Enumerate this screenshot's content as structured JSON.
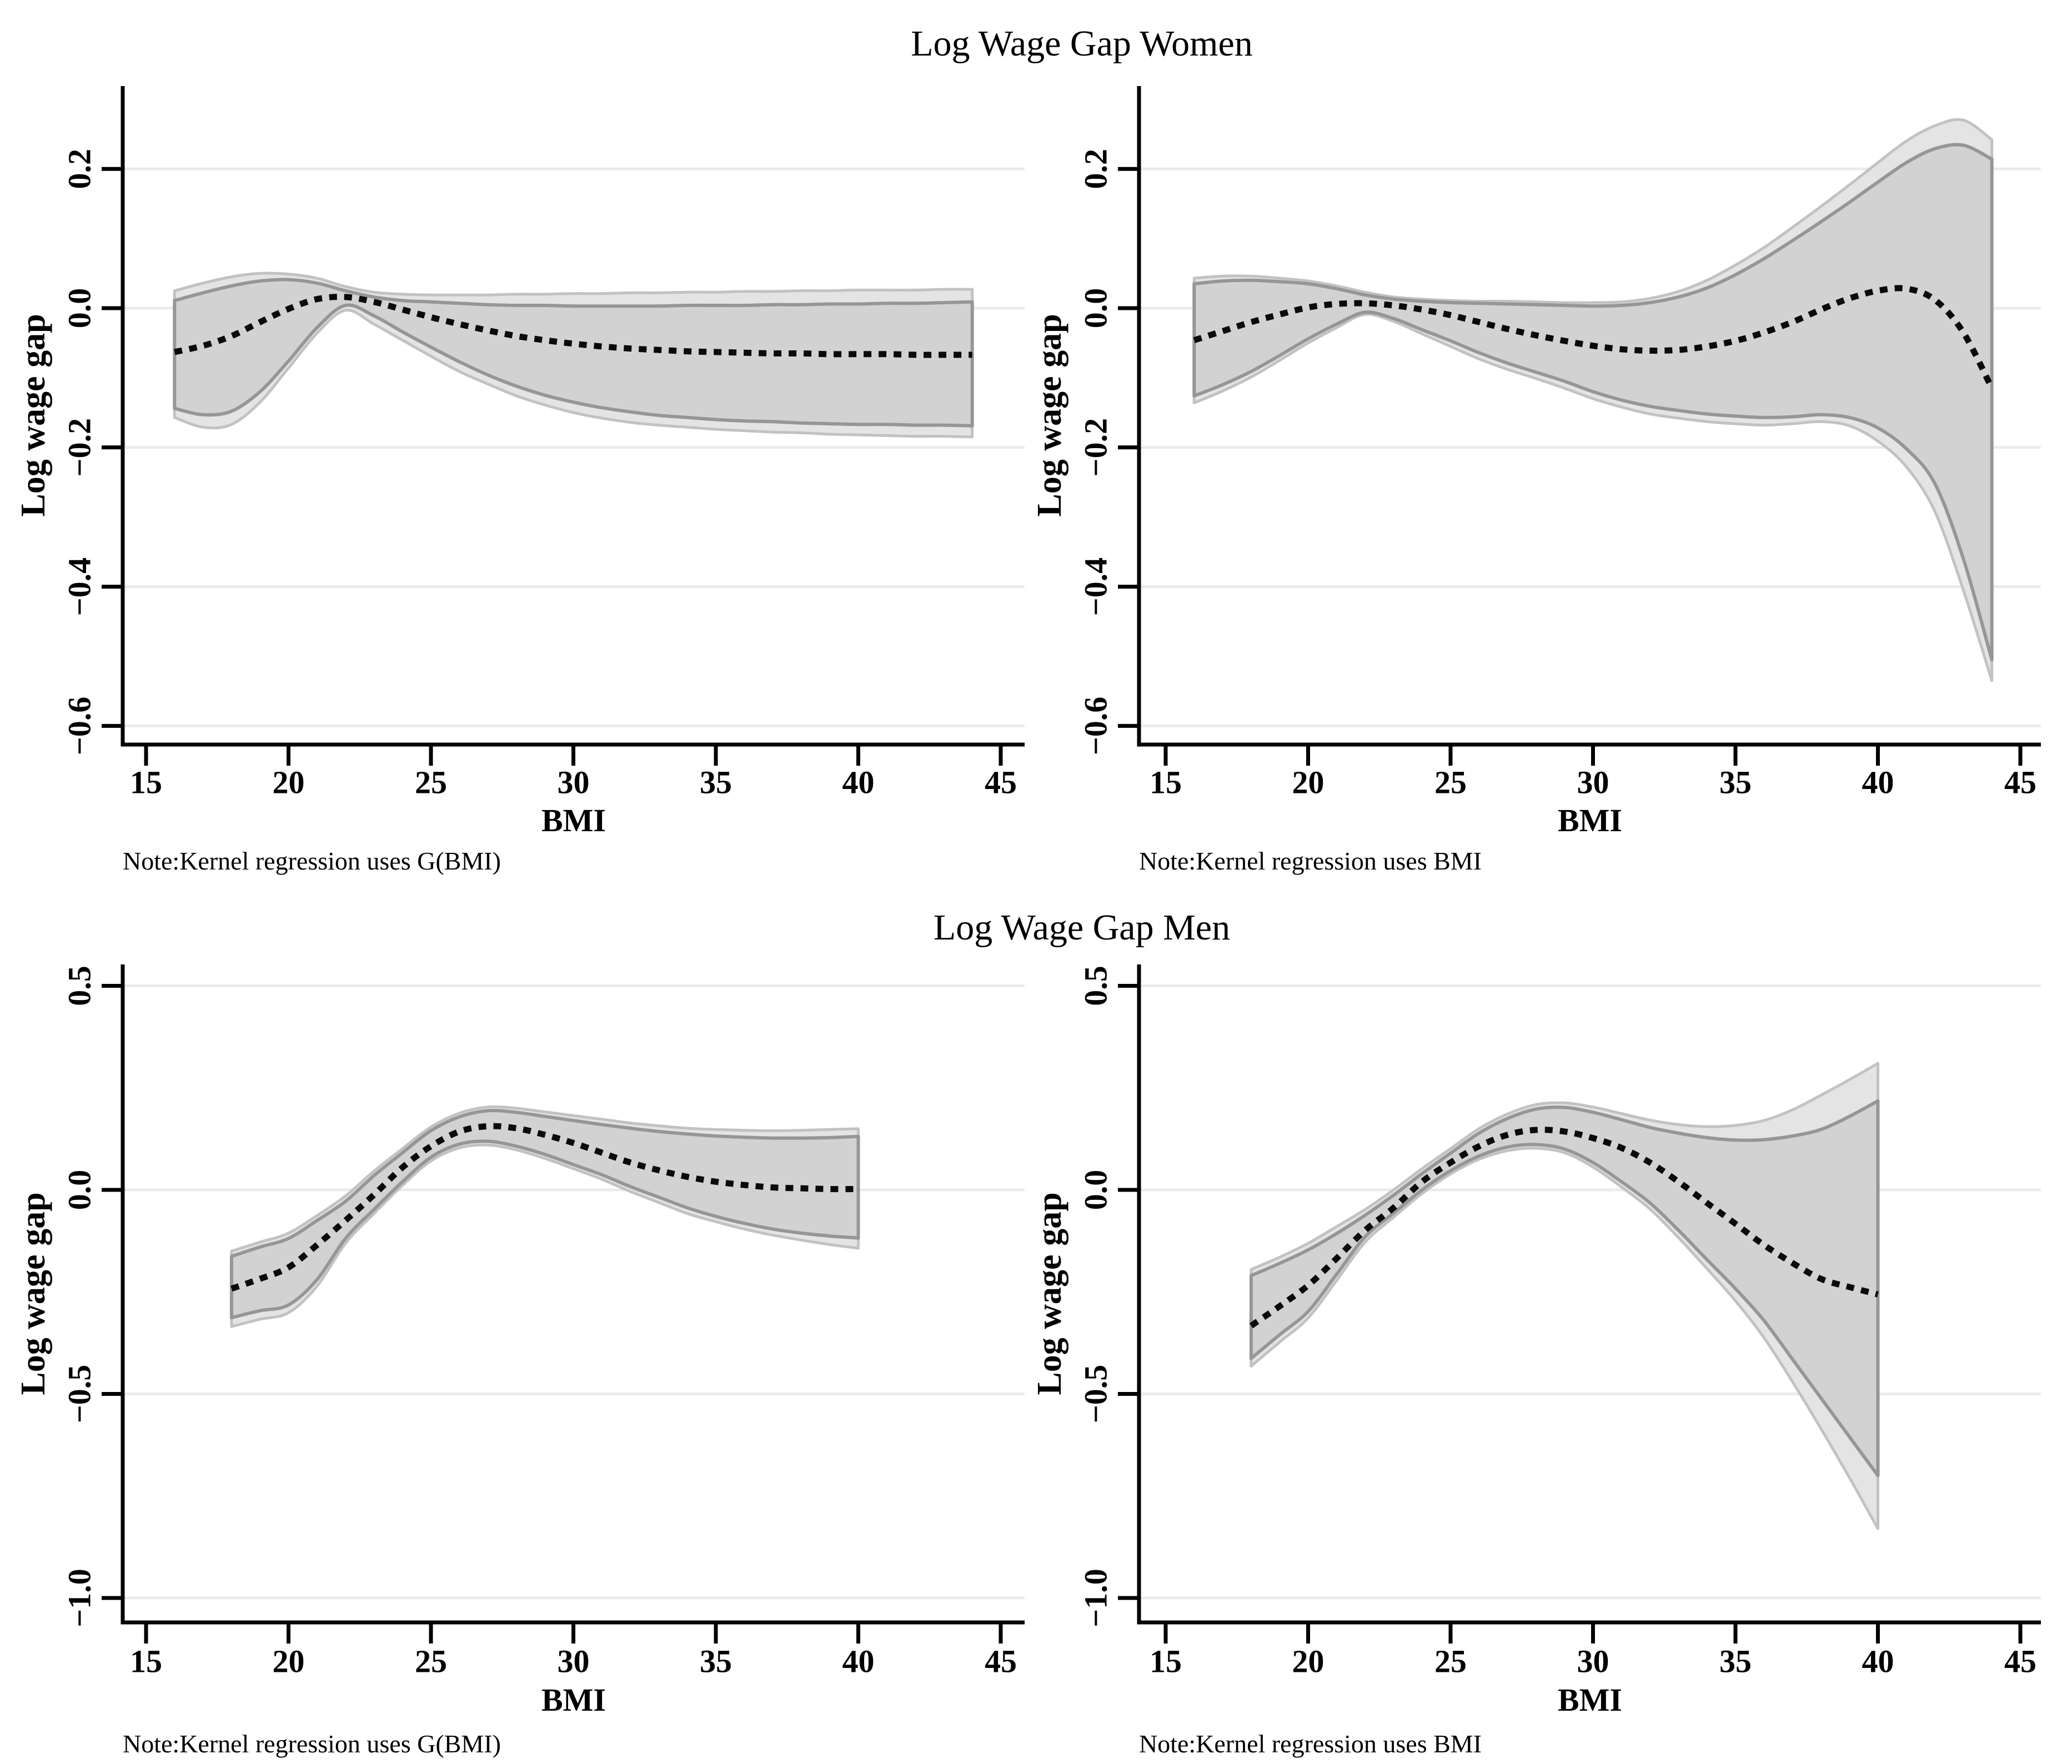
{
  "figure": {
    "titles": [
      "Log Wage Gap Women",
      "Log Wage Gap Men"
    ],
    "colors": {
      "background": "#ffffff",
      "axis": "#000000",
      "gridline": "#ebebeb",
      "band_inner_fill": "#d2d2d2",
      "band_inner_edge": "#969696",
      "band_outer_fill": "#e4e4e4",
      "band_outer_edge": "#c2c2c2",
      "estimate_line": "#0a0a0a"
    }
  },
  "chart_data": [
    {
      "type": "area",
      "id": "women-gbmi",
      "row": 0,
      "col": 0,
      "panel_title": "Log Wage Gap Women",
      "xlabel": "BMI",
      "ylabel": "Log wage gap",
      "note": "Note:Kernel regression uses G(BMI)",
      "grid": true,
      "legend": "none",
      "xlim": [
        14.2,
        45.8
      ],
      "ylim": [
        -0.63,
        0.32
      ],
      "xticks": [
        15,
        20,
        25,
        30,
        35,
        40,
        45
      ],
      "xtick_labels": [
        "15",
        "20",
        "25",
        "30",
        "35",
        "40",
        "45"
      ],
      "yticks": [
        0.2,
        0.0,
        -0.2,
        -0.4,
        -0.6
      ],
      "ytick_labels": [
        "0.2",
        "0.0",
        "−0.2",
        "−0.4",
        "−0.6"
      ],
      "x": [
        16,
        17,
        18,
        19,
        20,
        21,
        22,
        23,
        24,
        25,
        26,
        27,
        28,
        29,
        30,
        31,
        32,
        33,
        34,
        35,
        36,
        37,
        38,
        39,
        40,
        41,
        42,
        43,
        44
      ],
      "series": [
        {
          "name": "kernel estimate",
          "role": "estimate",
          "style": "dotted",
          "y": [
            -0.063,
            -0.054,
            -0.04,
            -0.02,
            -0.001,
            0.013,
            0.016,
            0.009,
            -0.002,
            -0.013,
            -0.023,
            -0.032,
            -0.04,
            -0.046,
            -0.051,
            -0.055,
            -0.058,
            -0.06,
            -0.062,
            -0.063,
            -0.064,
            -0.065,
            -0.065,
            -0.066,
            -0.066,
            -0.066,
            -0.067,
            -0.067,
            -0.067
          ]
        },
        {
          "name": "inner band",
          "role": "inner-band",
          "style": "area",
          "hi": [
            0.011,
            0.022,
            0.032,
            0.039,
            0.041,
            0.036,
            0.025,
            0.016,
            0.011,
            0.009,
            0.007,
            0.005,
            0.004,
            0.004,
            0.003,
            0.003,
            0.003,
            0.003,
            0.004,
            0.004,
            0.004,
            0.005,
            0.005,
            0.006,
            0.006,
            0.007,
            0.007,
            0.008,
            0.009
          ],
          "lo": [
            -0.144,
            -0.153,
            -0.148,
            -0.12,
            -0.076,
            -0.028,
            0.004,
            -0.011,
            -0.034,
            -0.056,
            -0.077,
            -0.096,
            -0.112,
            -0.125,
            -0.135,
            -0.143,
            -0.149,
            -0.154,
            -0.157,
            -0.16,
            -0.162,
            -0.163,
            -0.165,
            -0.166,
            -0.167,
            -0.167,
            -0.168,
            -0.168,
            -0.169
          ]
        },
        {
          "name": "outer band",
          "role": "outer-band",
          "style": "area",
          "hi": [
            0.025,
            0.036,
            0.045,
            0.05,
            0.049,
            0.043,
            0.031,
            0.023,
            0.02,
            0.019,
            0.019,
            0.019,
            0.02,
            0.02,
            0.021,
            0.021,
            0.022,
            0.022,
            0.023,
            0.023,
            0.024,
            0.024,
            0.025,
            0.025,
            0.026,
            0.026,
            0.026,
            0.027,
            0.027
          ],
          "lo": [
            -0.157,
            -0.171,
            -0.167,
            -0.135,
            -0.086,
            -0.036,
            -0.003,
            -0.023,
            -0.046,
            -0.069,
            -0.091,
            -0.109,
            -0.126,
            -0.139,
            -0.15,
            -0.158,
            -0.164,
            -0.168,
            -0.171,
            -0.174,
            -0.176,
            -0.178,
            -0.179,
            -0.181,
            -0.182,
            -0.183,
            -0.184,
            -0.184,
            -0.185
          ]
        }
      ]
    },
    {
      "type": "area",
      "id": "women-bmi",
      "row": 0,
      "col": 1,
      "panel_title": "Log Wage Gap Women",
      "xlabel": "BMI",
      "ylabel": "Log wage gap",
      "note": "Note:Kernel regression uses BMI",
      "grid": true,
      "legend": "none",
      "xlim": [
        14.2,
        45.8
      ],
      "ylim": [
        -0.63,
        0.32
      ],
      "xticks": [
        15,
        20,
        25,
        30,
        35,
        40,
        45
      ],
      "xtick_labels": [
        "15",
        "20",
        "25",
        "30",
        "35",
        "40",
        "45"
      ],
      "yticks": [
        0.2,
        0.0,
        -0.2,
        -0.4,
        -0.6
      ],
      "ytick_labels": [
        "0.2",
        "0.0",
        "−0.2",
        "−0.4",
        "−0.6"
      ],
      "x": [
        16,
        17,
        18,
        19,
        20,
        21,
        22,
        23,
        24,
        25,
        26,
        27,
        28,
        29,
        30,
        31,
        32,
        33,
        34,
        35,
        36,
        37,
        38,
        39,
        40,
        41,
        42,
        43,
        44
      ],
      "series": [
        {
          "name": "kernel estimate",
          "role": "estimate",
          "style": "dotted",
          "y": [
            -0.046,
            -0.033,
            -0.02,
            -0.009,
            0.001,
            0.006,
            0.007,
            0.004,
            -0.002,
            -0.01,
            -0.02,
            -0.03,
            -0.039,
            -0.047,
            -0.054,
            -0.059,
            -0.061,
            -0.06,
            -0.055,
            -0.047,
            -0.035,
            -0.02,
            -0.002,
            0.014,
            0.025,
            0.028,
            0.012,
            -0.035,
            -0.115
          ]
        },
        {
          "name": "inner band",
          "role": "inner-band",
          "style": "area",
          "hi": [
            0.035,
            0.039,
            0.04,
            0.038,
            0.035,
            0.028,
            0.019,
            0.013,
            0.01,
            0.008,
            0.007,
            0.006,
            0.005,
            0.004,
            0.003,
            0.004,
            0.008,
            0.016,
            0.029,
            0.048,
            0.071,
            0.097,
            0.124,
            0.152,
            0.181,
            0.209,
            0.229,
            0.234,
            0.214
          ],
          "lo": [
            -0.126,
            -0.11,
            -0.091,
            -0.068,
            -0.044,
            -0.023,
            -0.006,
            -0.015,
            -0.031,
            -0.047,
            -0.064,
            -0.079,
            -0.092,
            -0.105,
            -0.12,
            -0.132,
            -0.141,
            -0.147,
            -0.152,
            -0.155,
            -0.157,
            -0.156,
            -0.153,
            -0.157,
            -0.172,
            -0.202,
            -0.252,
            -0.36,
            -0.505
          ]
        },
        {
          "name": "outer band",
          "role": "outer-band",
          "style": "area",
          "hi": [
            0.043,
            0.046,
            0.046,
            0.043,
            0.039,
            0.032,
            0.023,
            0.016,
            0.013,
            0.011,
            0.01,
            0.01,
            0.009,
            0.008,
            0.008,
            0.009,
            0.014,
            0.024,
            0.04,
            0.062,
            0.087,
            0.116,
            0.146,
            0.177,
            0.209,
            0.24,
            0.262,
            0.27,
            0.242
          ],
          "lo": [
            -0.136,
            -0.119,
            -0.099,
            -0.075,
            -0.05,
            -0.028,
            -0.009,
            -0.019,
            -0.037,
            -0.055,
            -0.073,
            -0.088,
            -0.101,
            -0.115,
            -0.13,
            -0.142,
            -0.152,
            -0.158,
            -0.163,
            -0.166,
            -0.168,
            -0.166,
            -0.163,
            -0.169,
            -0.191,
            -0.228,
            -0.292,
            -0.405,
            -0.535
          ]
        }
      ]
    },
    {
      "type": "area",
      "id": "men-gbmi",
      "row": 1,
      "col": 0,
      "panel_title": "Log Wage Gap Men",
      "xlabel": "BMI",
      "ylabel": "Log wage gap",
      "note": "Note:Kernel regression uses G(BMI)",
      "grid": true,
      "legend": "none",
      "xlim": [
        14.2,
        45.8
      ],
      "ylim": [
        -1.06,
        0.55
      ],
      "xticks": [
        15,
        20,
        25,
        30,
        35,
        40,
        45
      ],
      "xtick_labels": [
        "15",
        "20",
        "25",
        "30",
        "35",
        "40",
        "45"
      ],
      "yticks": [
        0.5,
        0.0,
        -0.5,
        -1.0
      ],
      "ytick_labels": [
        "0.5",
        "0.0",
        "−0.5",
        "−1.0"
      ],
      "x": [
        18,
        19,
        20,
        21,
        22,
        23,
        24,
        25,
        26,
        27,
        28,
        29,
        30,
        31,
        32,
        33,
        34,
        35,
        36,
        37,
        38,
        39,
        40
      ],
      "series": [
        {
          "name": "kernel estimate",
          "role": "estimate",
          "style": "dotted",
          "y": [
            -0.242,
            -0.218,
            -0.19,
            -0.135,
            -0.075,
            -0.012,
            0.055,
            0.107,
            0.143,
            0.156,
            0.151,
            0.135,
            0.115,
            0.091,
            0.067,
            0.048,
            0.032,
            0.02,
            0.012,
            0.006,
            0.004,
            0.002,
            0.002
          ]
        },
        {
          "name": "inner band",
          "role": "inner-band",
          "style": "area",
          "hi": [
            -0.163,
            -0.14,
            -0.119,
            -0.075,
            -0.028,
            0.035,
            0.091,
            0.145,
            0.179,
            0.194,
            0.19,
            0.18,
            0.17,
            0.16,
            0.151,
            0.143,
            0.137,
            0.132,
            0.129,
            0.127,
            0.127,
            0.128,
            0.131
          ],
          "lo": [
            -0.313,
            -0.296,
            -0.282,
            -0.22,
            -0.119,
            -0.048,
            0.02,
            0.08,
            0.112,
            0.119,
            0.107,
            0.087,
            0.062,
            0.037,
            0.008,
            -0.018,
            -0.044,
            -0.065,
            -0.082,
            -0.096,
            -0.106,
            -0.113,
            -0.118
          ]
        },
        {
          "name": "outer band",
          "role": "outer-band",
          "style": "area",
          "hi": [
            -0.15,
            -0.128,
            -0.106,
            -0.063,
            -0.015,
            0.046,
            0.101,
            0.154,
            0.188,
            0.203,
            0.2,
            0.191,
            0.182,
            0.173,
            0.164,
            0.157,
            0.151,
            0.148,
            0.146,
            0.145,
            0.146,
            0.148,
            0.15
          ],
          "lo": [
            -0.335,
            -0.317,
            -0.301,
            -0.236,
            -0.131,
            -0.058,
            0.011,
            0.071,
            0.103,
            0.11,
            0.098,
            0.077,
            0.052,
            0.026,
            -0.004,
            -0.031,
            -0.058,
            -0.078,
            -0.096,
            -0.111,
            -0.123,
            -0.134,
            -0.143
          ]
        }
      ]
    },
    {
      "type": "area",
      "id": "men-bmi",
      "row": 1,
      "col": 1,
      "panel_title": "Log Wage Gap Men",
      "xlabel": "BMI",
      "ylabel": "Log wage gap",
      "note": "Note:Kernel regression uses BMI",
      "grid": true,
      "legend": "none",
      "xlim": [
        14.2,
        45.8
      ],
      "ylim": [
        -1.06,
        0.55
      ],
      "xticks": [
        15,
        20,
        25,
        30,
        35,
        40,
        45
      ],
      "xtick_labels": [
        "15",
        "20",
        "25",
        "30",
        "35",
        "40",
        "45"
      ],
      "yticks": [
        0.5,
        0.0,
        -0.5,
        -1.0
      ],
      "ytick_labels": [
        "0.5",
        "0.0",
        "−0.5",
        "−1.0"
      ],
      "x": [
        18,
        19,
        20,
        21,
        22,
        23,
        24,
        25,
        26,
        27,
        28,
        29,
        30,
        31,
        32,
        33,
        34,
        35,
        36,
        37,
        38,
        39,
        40
      ],
      "series": [
        {
          "name": "kernel estimate",
          "role": "estimate",
          "style": "dotted",
          "y": [
            -0.333,
            -0.285,
            -0.234,
            -0.168,
            -0.099,
            -0.044,
            0.02,
            0.067,
            0.107,
            0.135,
            0.147,
            0.143,
            0.127,
            0.103,
            0.067,
            0.02,
            -0.032,
            -0.083,
            -0.135,
            -0.179,
            -0.218,
            -0.238,
            -0.256
          ]
        },
        {
          "name": "inner band",
          "role": "inner-band",
          "style": "area",
          "hi": [
            -0.21,
            -0.18,
            -0.147,
            -0.107,
            -0.062,
            -0.013,
            0.04,
            0.09,
            0.139,
            0.175,
            0.198,
            0.202,
            0.19,
            0.172,
            0.153,
            0.139,
            0.128,
            0.122,
            0.123,
            0.132,
            0.148,
            0.18,
            0.218
          ],
          "lo": [
            -0.413,
            -0.355,
            -0.298,
            -0.207,
            -0.115,
            -0.057,
            0.0,
            0.047,
            0.083,
            0.105,
            0.111,
            0.1,
            0.067,
            0.02,
            -0.032,
            -0.099,
            -0.171,
            -0.242,
            -0.32,
            -0.415,
            -0.51,
            -0.605,
            -0.7
          ]
        },
        {
          "name": "outer band",
          "role": "outer-band",
          "style": "area",
          "hi": [
            -0.195,
            -0.165,
            -0.131,
            -0.09,
            -0.048,
            0.0,
            0.052,
            0.101,
            0.15,
            0.186,
            0.209,
            0.213,
            0.203,
            0.187,
            0.171,
            0.16,
            0.155,
            0.158,
            0.17,
            0.196,
            0.232,
            0.27,
            0.31
          ],
          "lo": [
            -0.432,
            -0.373,
            -0.314,
            -0.222,
            -0.128,
            -0.067,
            -0.009,
            0.039,
            0.075,
            0.096,
            0.102,
            0.091,
            0.056,
            0.007,
            -0.047,
            -0.117,
            -0.193,
            -0.272,
            -0.362,
            -0.47,
            -0.585,
            -0.705,
            -0.83
          ]
        }
      ]
    }
  ]
}
